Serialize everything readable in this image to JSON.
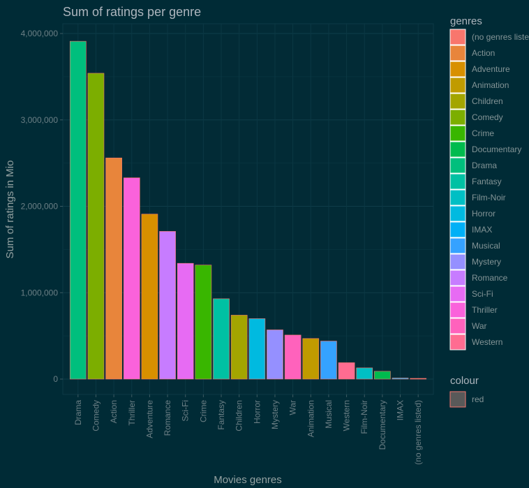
{
  "chart_data": {
    "type": "bar",
    "title": "Sum of ratings per genre",
    "xlabel": "Movies genres",
    "ylabel": "Sum of ratings in Mio",
    "ylim": [
      0,
      4000000
    ],
    "y_ticks": [
      0,
      1000000,
      2000000,
      3000000,
      4000000
    ],
    "y_tick_labels": [
      "0",
      "1,000,000",
      "2,000,000",
      "3,000,000",
      "4,000,000"
    ],
    "grid": true,
    "legend_placement": "right",
    "categories": [
      "Drama",
      "Comedy",
      "Action",
      "Thriller",
      "Adventure",
      "Romance",
      "Sci-Fi",
      "Crime",
      "Fantasy",
      "Children",
      "Horror",
      "Mystery",
      "War",
      "Animation",
      "Musical",
      "Western",
      "Film-Noir",
      "Documentary",
      "IMAX",
      "(no genres listed)"
    ],
    "values": [
      3910000,
      3540000,
      2560000,
      2330000,
      1910000,
      1710000,
      1340000,
      1320000,
      930000,
      740000,
      700000,
      570000,
      510000,
      470000,
      440000,
      190000,
      130000,
      90000,
      13000,
      7000
    ],
    "legend": {
      "title": "genres",
      "entries": [
        {
          "label": "(no genres listed)",
          "color": "#F8766D"
        },
        {
          "label": "Action",
          "color": "#E8853B"
        },
        {
          "label": "Adventure",
          "color": "#D89000"
        },
        {
          "label": "Animation",
          "color": "#C09B00"
        },
        {
          "label": "Children",
          "color": "#A3A500"
        },
        {
          "label": "Comedy",
          "color": "#7CAE00"
        },
        {
          "label": "Crime",
          "color": "#39B600"
        },
        {
          "label": "Documentary",
          "color": "#00BB4E"
        },
        {
          "label": "Drama",
          "color": "#00BF7D"
        },
        {
          "label": "Fantasy",
          "color": "#00C1A3"
        },
        {
          "label": "Film-Noir",
          "color": "#00BFC4"
        },
        {
          "label": "Horror",
          "color": "#00BAE0"
        },
        {
          "label": "IMAX",
          "color": "#00B0F6"
        },
        {
          "label": "Musical",
          "color": "#35A2FF"
        },
        {
          "label": "Mystery",
          "color": "#9590FF"
        },
        {
          "label": "Romance",
          "color": "#C77CFF"
        },
        {
          "label": "Sci-Fi",
          "color": "#E76BF3"
        },
        {
          "label": "Thriller",
          "color": "#FA62DB"
        },
        {
          "label": "War",
          "color": "#FF62BC"
        },
        {
          "label": "Western",
          "color": "#FF6C91"
        }
      ]
    },
    "colour_legend": {
      "title": "colour",
      "entries": [
        {
          "label": "red",
          "color": "#F8766D"
        }
      ]
    }
  }
}
